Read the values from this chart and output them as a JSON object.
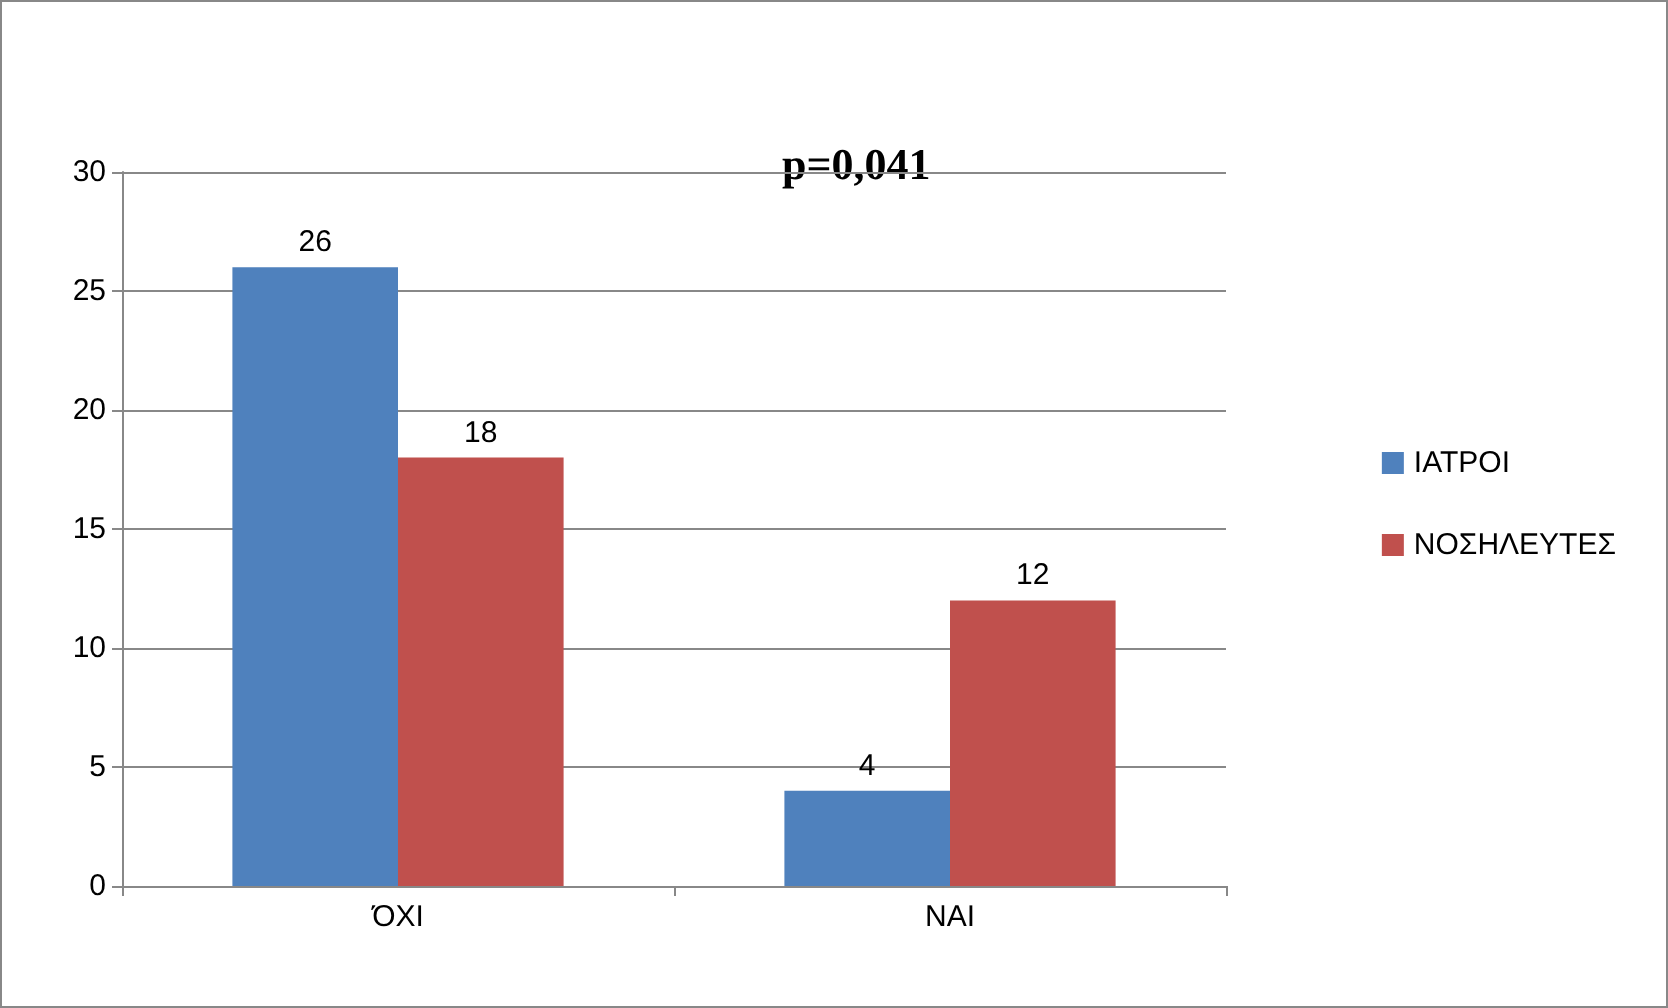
{
  "chart_data": {
    "type": "bar",
    "categories": [
      "ΌΧΙ",
      "ΝΑΙ"
    ],
    "series": [
      {
        "name": "ΙΑΤΡΟΙ",
        "color": "#4f81bd",
        "values": [
          26,
          4
        ]
      },
      {
        "name": "ΝΟΣΗΛΕΥΤΕΣ",
        "color": "#c0504d",
        "values": [
          18,
          12
        ]
      }
    ],
    "ylim": [
      0,
      30
    ],
    "yticks": [
      0,
      5,
      10,
      15,
      20,
      25,
      30
    ],
    "grid": "y",
    "legend": "right",
    "data_labels": true,
    "annotations": [
      "p=0,041"
    ]
  }
}
